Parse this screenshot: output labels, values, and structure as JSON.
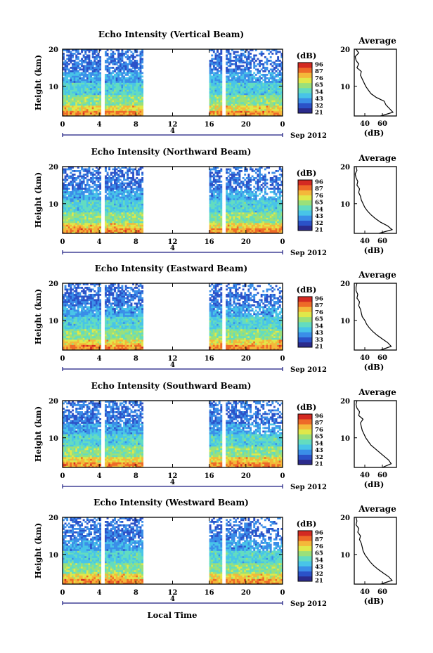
{
  "colors": {
    "colormap": [
      "#2b2b8c",
      "#2b52c8",
      "#3a8ee8",
      "#48c4e8",
      "#63dcc0",
      "#9ae07a",
      "#e0e84a",
      "#f4b83a",
      "#ee6a28",
      "#d42a22"
    ],
    "axis": "#000000",
    "timeline": "#1a1a80"
  },
  "xaxis_label": "Local Time",
  "chart_data": [
    {
      "type": "heatmap",
      "title": "Echo Intensity (Vertical Beam)",
      "ylabel": "Height (km)",
      "y_ticks": [
        "20",
        "10"
      ],
      "y_tick_values": [
        20,
        10
      ],
      "ylim": [
        2,
        20
      ],
      "x_ticks": [
        "0",
        "4",
        "8",
        "12",
        "16",
        "20",
        "0"
      ],
      "x_tick_values": [
        0,
        4,
        8,
        12,
        16,
        20,
        24
      ],
      "xlim": [
        0,
        24
      ],
      "date_label": "4",
      "month_label": "Sep 2012",
      "colorbar_unit": "(dB)",
      "colorbar_ticks": [
        "96",
        "87",
        "76",
        "65",
        "54",
        "43",
        "32",
        "21"
      ],
      "data_gaps": [
        [
          4.3,
          4.6
        ],
        [
          8.9,
          16.1
        ],
        [
          17.4,
          17.8
        ]
      ],
      "average_profile": {
        "title": "Average",
        "xlabel": "(dB)",
        "x_ticks": [
          "40",
          "60"
        ],
        "x_tick_values": [
          40,
          60
        ],
        "xlim": [
          28,
          76
        ],
        "y_ticks": [
          "20",
          "10"
        ],
        "y_tick_values": [
          20,
          10
        ],
        "ylim": [
          2,
          20
        ],
        "height_km": [
          2,
          3,
          4,
          5,
          6,
          7,
          8,
          9,
          10,
          11,
          12,
          13,
          14,
          15,
          16,
          17,
          18,
          19,
          20
        ],
        "db": [
          58,
          72,
          68,
          64,
          62,
          53,
          47,
          44,
          41,
          39,
          37,
          35,
          36,
          31,
          33,
          30,
          29,
          33,
          30
        ]
      }
    },
    {
      "type": "heatmap",
      "title": "Echo Intensity (Northward Beam)",
      "ylabel": "Height (km)",
      "y_ticks": [
        "20",
        "10"
      ],
      "y_tick_values": [
        20,
        10
      ],
      "ylim": [
        2,
        20
      ],
      "x_ticks": [
        "0",
        "4",
        "8",
        "12",
        "16",
        "20",
        "0"
      ],
      "x_tick_values": [
        0,
        4,
        8,
        12,
        16,
        20,
        24
      ],
      "xlim": [
        0,
        24
      ],
      "date_label": "4",
      "month_label": "Sep 2012",
      "colorbar_unit": "(dB)",
      "colorbar_ticks": [
        "96",
        "87",
        "76",
        "65",
        "54",
        "43",
        "32",
        "21"
      ],
      "data_gaps": [
        [
          4.3,
          4.6
        ],
        [
          8.9,
          16.1
        ],
        [
          17.4,
          17.8
        ]
      ],
      "average_profile": {
        "title": "Average",
        "xlabel": "(dB)",
        "x_ticks": [
          "40",
          "60"
        ],
        "x_tick_values": [
          40,
          60
        ],
        "xlim": [
          28,
          76
        ],
        "y_ticks": [
          "20",
          "10"
        ],
        "y_tick_values": [
          20,
          10
        ],
        "ylim": [
          2,
          20
        ],
        "height_km": [
          2,
          3,
          4,
          5,
          6,
          7,
          8,
          9,
          10,
          11,
          12,
          13,
          14,
          15,
          16,
          17,
          18,
          19,
          20
        ],
        "db": [
          56,
          71,
          66,
          58,
          52,
          47,
          43,
          40,
          38,
          36,
          35,
          33,
          34,
          31,
          32,
          30,
          29,
          31,
          30
        ]
      }
    },
    {
      "type": "heatmap",
      "title": "Echo Intensity (Eastward Beam)",
      "ylabel": "Height (km)",
      "y_ticks": [
        "20",
        "10"
      ],
      "y_tick_values": [
        20,
        10
      ],
      "ylim": [
        2,
        20
      ],
      "x_ticks": [
        "0",
        "4",
        "8",
        "12",
        "16",
        "20",
        "0"
      ],
      "x_tick_values": [
        0,
        4,
        8,
        12,
        16,
        20,
        24
      ],
      "xlim": [
        0,
        24
      ],
      "date_label": "4",
      "month_label": "Sep 2012",
      "colorbar_unit": "(dB)",
      "colorbar_ticks": [
        "96",
        "87",
        "76",
        "65",
        "54",
        "43",
        "33",
        "21"
      ],
      "data_gaps": [
        [
          4.3,
          4.6
        ],
        [
          8.9,
          16.1
        ],
        [
          17.4,
          17.8
        ]
      ],
      "average_profile": {
        "title": "Average",
        "xlabel": "(dB)",
        "x_ticks": [
          "40",
          "60"
        ],
        "x_tick_values": [
          40,
          60
        ],
        "xlim": [
          28,
          76
        ],
        "y_ticks": [
          "20",
          "10"
        ],
        "y_tick_values": [
          20,
          10
        ],
        "ylim": [
          2,
          20
        ],
        "height_km": [
          2,
          3,
          4,
          5,
          6,
          7,
          8,
          9,
          10,
          11,
          12,
          13,
          14,
          15,
          16,
          17,
          18,
          19,
          20
        ],
        "db": [
          58,
          70,
          66,
          60,
          54,
          49,
          45,
          42,
          40,
          37,
          36,
          35,
          33,
          34,
          31,
          32,
          30,
          30,
          31
        ]
      }
    },
    {
      "type": "heatmap",
      "title": "Echo Intensity (Southward Beam)",
      "ylabel": "Height (km)",
      "y_ticks": [
        "20",
        "10"
      ],
      "y_tick_values": [
        20,
        10
      ],
      "ylim": [
        2,
        20
      ],
      "x_ticks": [
        "0",
        "4",
        "8",
        "12",
        "16",
        "20",
        "0"
      ],
      "x_tick_values": [
        0,
        4,
        8,
        12,
        16,
        20,
        24
      ],
      "xlim": [
        0,
        24
      ],
      "date_label": "4",
      "month_label": "Sep 2012",
      "colorbar_unit": "(dB)",
      "colorbar_ticks": [
        "96",
        "87",
        "76",
        "65",
        "54",
        "43",
        "32",
        "21"
      ],
      "data_gaps": [
        [
          4.3,
          4.6
        ],
        [
          8.9,
          16.1
        ],
        [
          17.4,
          17.8
        ]
      ],
      "average_profile": {
        "title": "Average",
        "xlabel": "(dB)",
        "x_ticks": [
          "40",
          "60"
        ],
        "x_tick_values": [
          40,
          60
        ],
        "xlim": [
          28,
          76
        ],
        "y_ticks": [
          "20",
          "10"
        ],
        "y_tick_values": [
          20,
          10
        ],
        "ylim": [
          2,
          20
        ],
        "height_km": [
          2,
          3,
          4,
          5,
          6,
          7,
          8,
          9,
          10,
          11,
          12,
          13,
          14,
          15,
          16,
          17,
          18,
          19,
          20
        ],
        "db": [
          60,
          70,
          67,
          62,
          57,
          52,
          47,
          44,
          41,
          39,
          37,
          36,
          35,
          38,
          33,
          34,
          31,
          30,
          31
        ]
      }
    },
    {
      "type": "heatmap",
      "title": "Echo Intensity (Westward Beam)",
      "ylabel": "Height (km)",
      "y_ticks": [
        "20",
        "10"
      ],
      "y_tick_values": [
        20,
        10
      ],
      "ylim": [
        2,
        20
      ],
      "x_ticks": [
        "0",
        "4",
        "8",
        "12",
        "16",
        "20",
        "0"
      ],
      "x_tick_values": [
        0,
        4,
        8,
        12,
        16,
        20,
        24
      ],
      "xlim": [
        0,
        24
      ],
      "date_label": "4",
      "month_label": "Sep 2012",
      "colorbar_unit": "(dB)",
      "colorbar_ticks": [
        "96",
        "87",
        "76",
        "65",
        "54",
        "43",
        "32",
        "21"
      ],
      "data_gaps": [
        [
          4.3,
          4.6
        ],
        [
          8.9,
          16.1
        ],
        [
          17.4,
          17.8
        ]
      ],
      "average_profile": {
        "title": "Average",
        "xlabel": "(dB)",
        "x_ticks": [
          "40",
          "60"
        ],
        "x_tick_values": [
          40,
          60
        ],
        "xlim": [
          28,
          76
        ],
        "y_ticks": [
          "20",
          "10"
        ],
        "y_tick_values": [
          20,
          10
        ],
        "ylim": [
          2,
          20
        ],
        "height_km": [
          2,
          3,
          4,
          5,
          6,
          7,
          8,
          9,
          10,
          11,
          12,
          13,
          14,
          15,
          16,
          17,
          18,
          19,
          20
        ],
        "db": [
          58,
          71,
          67,
          61,
          55,
          50,
          46,
          43,
          40,
          38,
          37,
          36,
          34,
          35,
          32,
          33,
          30,
          31,
          30
        ]
      }
    }
  ]
}
